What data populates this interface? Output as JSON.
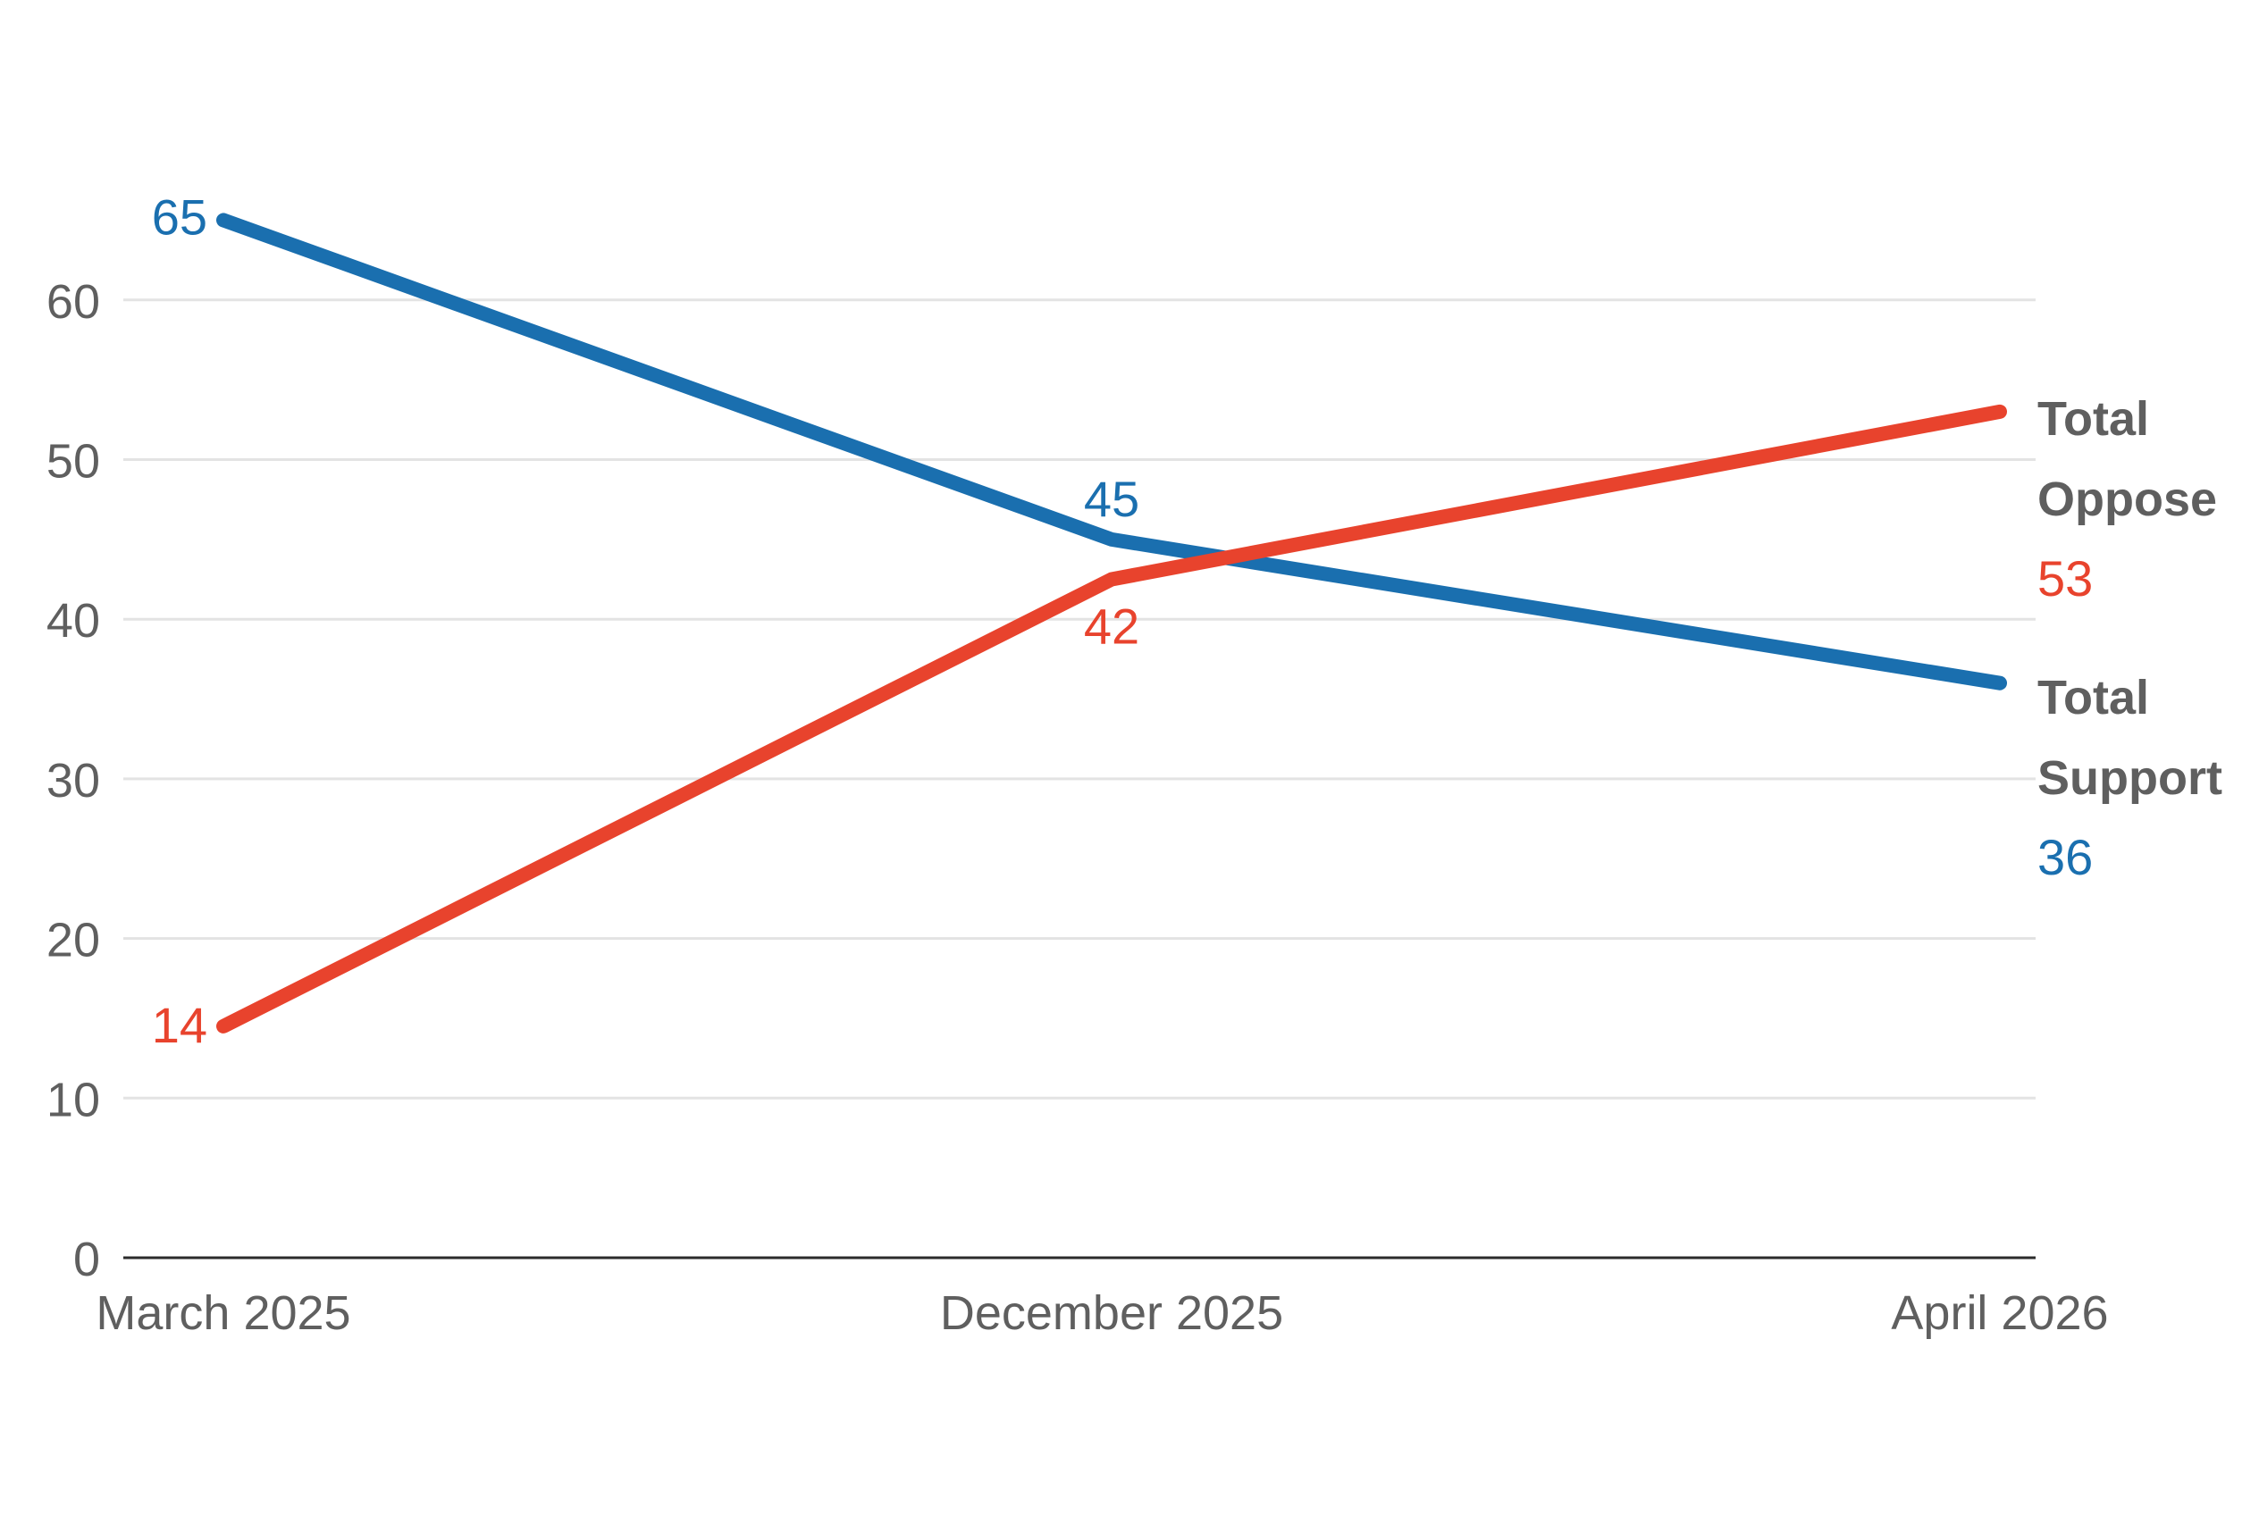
{
  "chart_data": {
    "type": "line",
    "title": "",
    "xlabel": "",
    "ylabel": "",
    "x": [
      "March 2025",
      "December 2025",
      "April 2026"
    ],
    "ylim": [
      0,
      60
    ],
    "yticks": [
      0,
      10,
      20,
      30,
      40,
      50,
      60
    ],
    "grid": true,
    "legend": "direct labels at right end of lines",
    "series": [
      {
        "name": "Total Support",
        "name_lines": [
          "Total",
          "Support"
        ],
        "color": "#1a6faf",
        "values": [
          65,
          45,
          36
        ],
        "labels": [
          "65",
          "45",
          "36"
        ]
      },
      {
        "name": "Total Oppose",
        "name_lines": [
          "Total",
          "Oppose"
        ],
        "color": "#e8432d",
        "values": [
          14.5,
          42.5,
          53
        ],
        "labels": [
          "14",
          "42",
          "53"
        ]
      }
    ]
  }
}
